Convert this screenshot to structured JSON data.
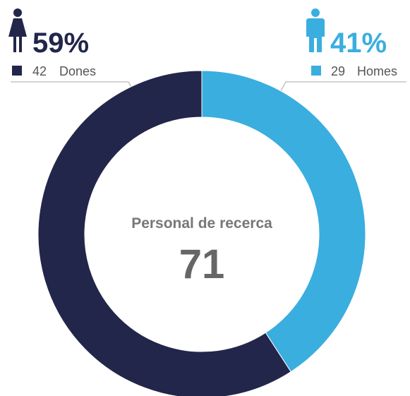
{
  "chart_data": {
    "type": "donut",
    "categories": [
      "Dones",
      "Homes"
    ],
    "values": [
      42,
      29
    ],
    "shares": [
      59,
      41
    ],
    "share_labels": [
      "59%",
      "41%"
    ],
    "colors": [
      "#22264a",
      "#3aaedf"
    ],
    "center_label": "Personal de recerca",
    "total": 71
  }
}
